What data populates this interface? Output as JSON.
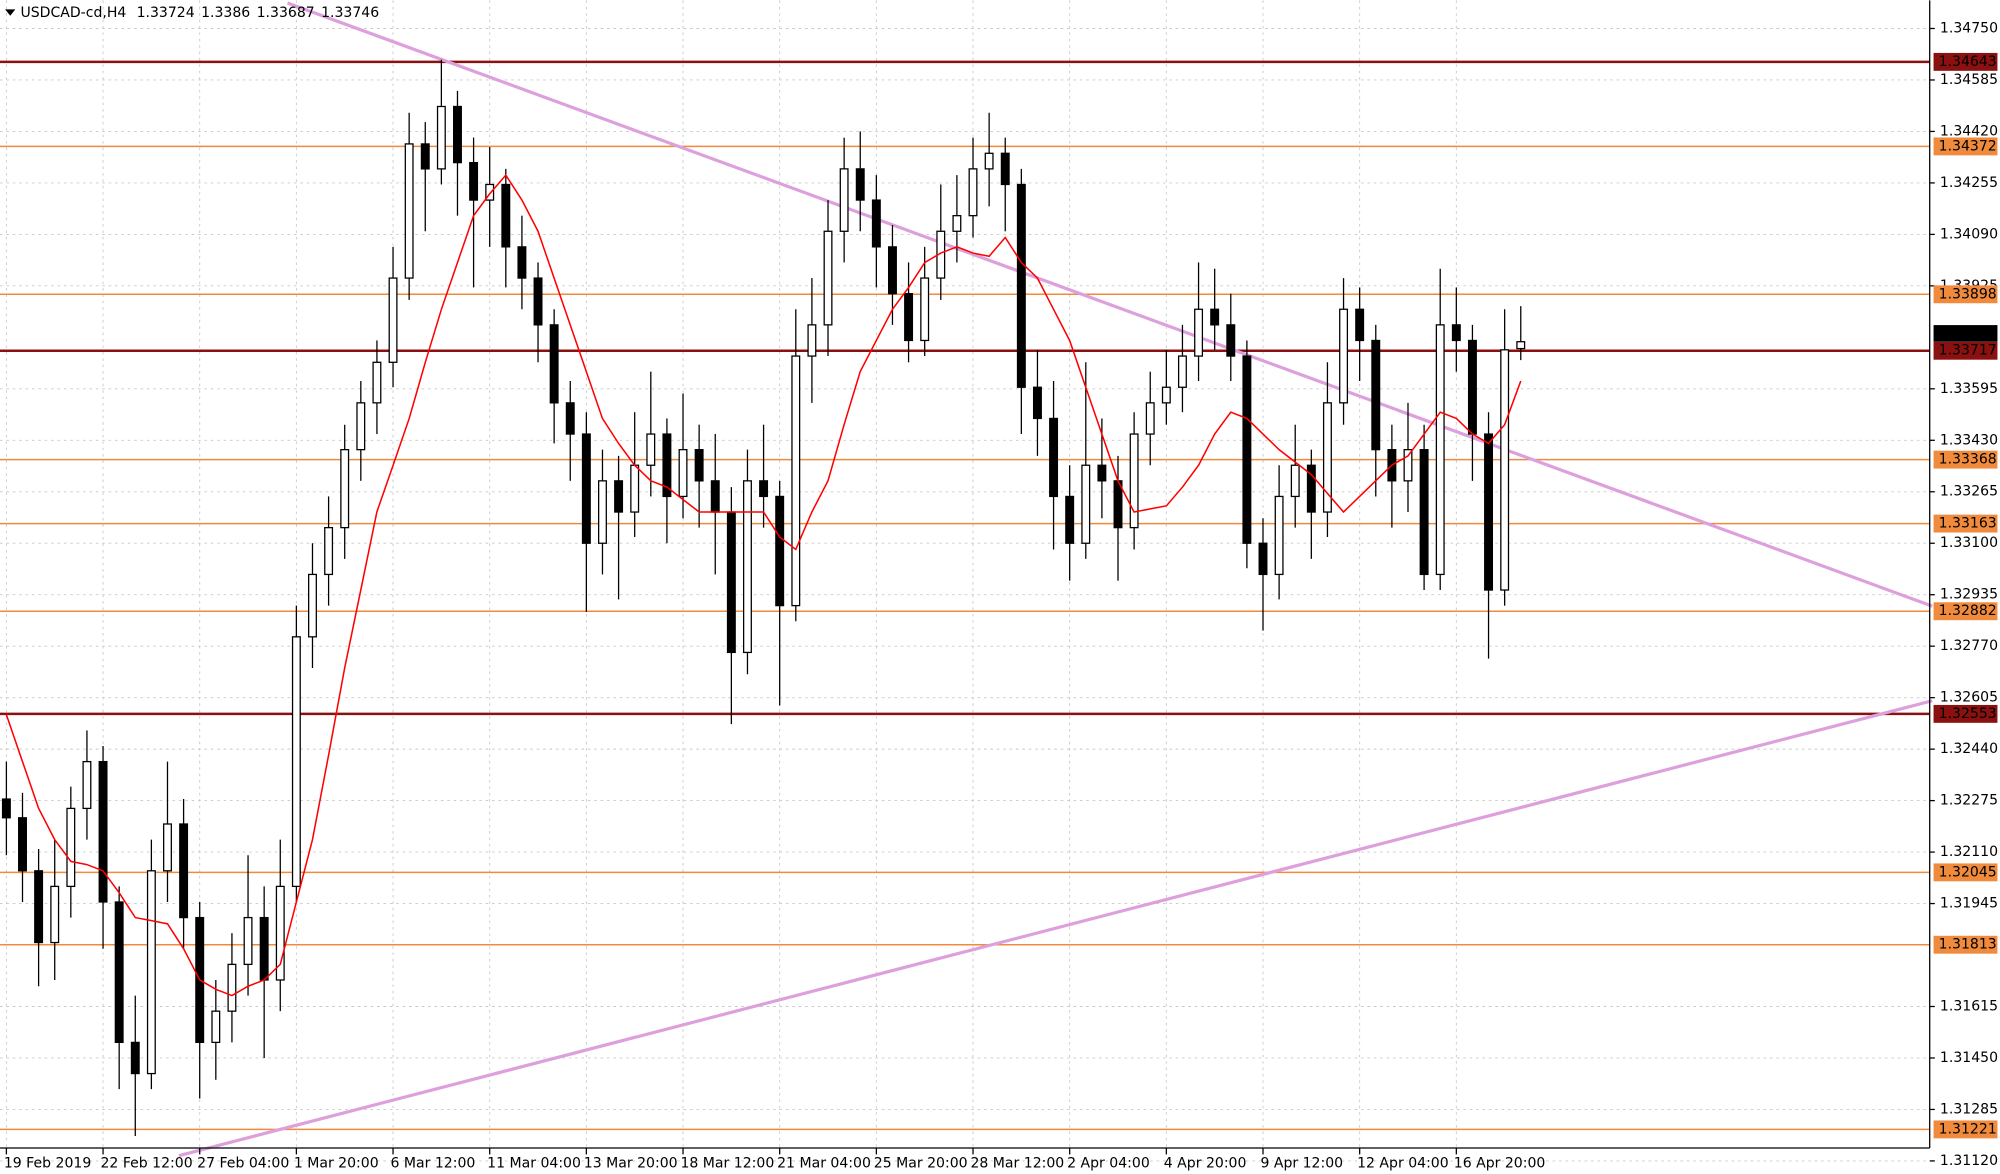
{
  "chart_data": {
    "type": "candlestick",
    "title": "USDCAD-cd,H4",
    "categories": [
      "19 Feb 2019",
      null,
      null,
      null,
      null,
      null,
      "22 Feb 12:00",
      null,
      null,
      null,
      null,
      null,
      "27 Feb 04:00",
      null,
      null,
      null,
      null,
      null,
      "1 Mar 20:00",
      null,
      null,
      null,
      null,
      null,
      "6 Mar 12:00",
      null,
      null,
      null,
      null,
      null,
      "11 Mar 04:00",
      null,
      null,
      null,
      null,
      null,
      "13 Mar 20:00",
      null,
      null,
      null,
      null,
      null,
      "18 Mar 12:00",
      null,
      null,
      null,
      null,
      null,
      "21 Mar 04:00",
      null,
      null,
      null,
      null,
      null,
      "25 Mar 20:00",
      null,
      null,
      null,
      null,
      null,
      "28 Mar 12:00",
      null,
      null,
      null,
      null,
      null,
      "2 Apr 04:00",
      null,
      null,
      null,
      null,
      null,
      "4 Apr 20:00",
      null,
      null,
      null,
      null,
      null,
      "9 Apr 12:00",
      null,
      null,
      null,
      null,
      null,
      "12 Apr 04:00",
      null,
      null,
      null,
      null,
      null,
      "16 Apr 20:00",
      null,
      null,
      null,
      null
    ],
    "open": [
      1.3228,
      1.3222,
      1.3205,
      1.3182,
      1.32,
      1.3225,
      1.324,
      1.3195,
      1.315,
      1.314,
      1.3205,
      1.322,
      1.319,
      1.315,
      1.316,
      1.3175,
      1.319,
      1.317,
      1.32,
      1.328,
      1.33,
      1.3315,
      1.334,
      1.3355,
      1.3368,
      1.3395,
      1.3438,
      1.343,
      1.345,
      1.3432,
      1.342,
      1.3425,
      1.3405,
      1.3395,
      1.338,
      1.3355,
      1.3345,
      1.331,
      1.333,
      1.332,
      1.3335,
      1.3345,
      1.3325,
      1.334,
      1.333,
      1.332,
      1.3275,
      1.333,
      1.3325,
      1.329,
      1.337,
      1.338,
      1.341,
      1.343,
      1.342,
      1.3405,
      1.339,
      1.3375,
      1.3395,
      1.341,
      1.3415,
      1.343,
      1.3435,
      1.3425,
      1.336,
      1.335,
      1.3325,
      1.331,
      1.3335,
      1.333,
      1.3315,
      1.3345,
      1.3355,
      1.336,
      1.337,
      1.3385,
      1.338,
      1.337,
      1.331,
      1.33,
      1.3325,
      1.3335,
      1.332,
      1.3355,
      1.3385,
      1.3375,
      1.334,
      1.333,
      1.334,
      1.33,
      1.338,
      1.3375,
      1.3345,
      1.3295,
      1.33724
    ],
    "high": [
      1.324,
      1.323,
      1.3212,
      1.3215,
      1.3232,
      1.325,
      1.3245,
      1.32,
      1.3165,
      1.3215,
      1.324,
      1.3228,
      1.3195,
      1.317,
      1.3185,
      1.321,
      1.32,
      1.3215,
      1.329,
      1.331,
      1.3325,
      1.3348,
      1.3362,
      1.3375,
      1.3405,
      1.3448,
      1.3445,
      1.3465,
      1.3455,
      1.344,
      1.3437,
      1.343,
      1.3415,
      1.34,
      1.3385,
      1.3362,
      1.3352,
      1.334,
      1.3338,
      1.3352,
      1.3365,
      1.335,
      1.3358,
      1.3348,
      1.3345,
      1.3328,
      1.334,
      1.3348,
      1.333,
      1.3385,
      1.3395,
      1.342,
      1.344,
      1.3442,
      1.3428,
      1.3412,
      1.34,
      1.3405,
      1.3425,
      1.3428,
      1.344,
      1.3448,
      1.344,
      1.343,
      1.3372,
      1.3362,
      1.3335,
      1.3368,
      1.335,
      1.3338,
      1.3352,
      1.3365,
      1.3372,
      1.338,
      1.34,
      1.3398,
      1.339,
      1.3375,
      1.3318,
      1.3335,
      1.3348,
      1.334,
      1.3368,
      1.3395,
      1.3392,
      1.338,
      1.3348,
      1.3355,
      1.3348,
      1.3398,
      1.3392,
      1.338,
      1.3352,
      1.3385,
      1.3386
    ],
    "low": [
      1.321,
      1.3195,
      1.3168,
      1.317,
      1.319,
      1.3215,
      1.318,
      1.3135,
      1.312,
      1.3135,
      1.3195,
      1.318,
      1.3132,
      1.3138,
      1.315,
      1.3165,
      1.3145,
      1.316,
      1.3195,
      1.327,
      1.329,
      1.3305,
      1.333,
      1.3345,
      1.336,
      1.3388,
      1.341,
      1.3425,
      1.3415,
      1.3392,
      1.3405,
      1.3392,
      1.3385,
      1.3368,
      1.3342,
      1.333,
      1.3288,
      1.33,
      1.3292,
      1.3312,
      1.3325,
      1.331,
      1.3318,
      1.3315,
      1.33,
      1.3252,
      1.3268,
      1.3315,
      1.3258,
      1.3285,
      1.3355,
      1.337,
      1.34,
      1.341,
      1.3392,
      1.338,
      1.3368,
      1.337,
      1.3388,
      1.34,
      1.3408,
      1.3418,
      1.341,
      1.3345,
      1.3338,
      1.3308,
      1.3298,
      1.3305,
      1.3318,
      1.3298,
      1.3308,
      1.3335,
      1.3348,
      1.3352,
      1.3362,
      1.3372,
      1.3362,
      1.3302,
      1.3282,
      1.3292,
      1.3315,
      1.3305,
      1.3312,
      1.3348,
      1.3362,
      1.3325,
      1.3315,
      1.332,
      1.3295,
      1.3295,
      1.3365,
      1.333,
      1.3273,
      1.329,
      1.33687
    ],
    "close": [
      1.3222,
      1.3205,
      1.3182,
      1.32,
      1.3225,
      1.324,
      1.3195,
      1.315,
      1.314,
      1.3205,
      1.322,
      1.319,
      1.315,
      1.316,
      1.3175,
      1.319,
      1.317,
      1.32,
      1.328,
      1.33,
      1.3315,
      1.334,
      1.3355,
      1.3368,
      1.3395,
      1.3438,
      1.343,
      1.345,
      1.3432,
      1.342,
      1.3425,
      1.3405,
      1.3395,
      1.338,
      1.3355,
      1.3345,
      1.331,
      1.333,
      1.332,
      1.3335,
      1.3345,
      1.3325,
      1.334,
      1.333,
      1.332,
      1.3275,
      1.333,
      1.3325,
      1.329,
      1.337,
      1.338,
      1.341,
      1.343,
      1.342,
      1.3405,
      1.339,
      1.3375,
      1.3395,
      1.341,
      1.3415,
      1.343,
      1.3435,
      1.3425,
      1.336,
      1.335,
      1.3325,
      1.331,
      1.3335,
      1.333,
      1.3315,
      1.3345,
      1.3355,
      1.336,
      1.337,
      1.3385,
      1.338,
      1.337,
      1.331,
      1.33,
      1.3325,
      1.3335,
      1.332,
      1.3355,
      1.3385,
      1.3375,
      1.334,
      1.333,
      1.334,
      1.33,
      1.338,
      1.3375,
      1.3345,
      1.3295,
      1.3372,
      1.33746
    ],
    "moving_average": {
      "color": "#ff0000",
      "values": [
        1.3255,
        1.324,
        1.3225,
        1.3215,
        1.3208,
        1.3207,
        1.3205,
        1.3198,
        1.319,
        1.3189,
        1.3188,
        1.318,
        1.317,
        1.3167,
        1.3165,
        1.3168,
        1.317,
        1.3175,
        1.3195,
        1.3215,
        1.3242,
        1.327,
        1.3295,
        1.332,
        1.3335,
        1.335,
        1.3368,
        1.3385,
        1.34,
        1.3415,
        1.3422,
        1.3428,
        1.342,
        1.341,
        1.3395,
        1.338,
        1.3365,
        1.335,
        1.3342,
        1.3335,
        1.333,
        1.3328,
        1.3324,
        1.332,
        1.332,
        1.332,
        1.332,
        1.332,
        1.3312,
        1.3308,
        1.332,
        1.333,
        1.3348,
        1.3365,
        1.3375,
        1.3385,
        1.3392,
        1.34,
        1.3403,
        1.3405,
        1.3403,
        1.3402,
        1.3408,
        1.34,
        1.3395,
        1.3385,
        1.3375,
        1.336,
        1.3345,
        1.333,
        1.332,
        1.3321,
        1.3322,
        1.3328,
        1.3335,
        1.3345,
        1.3352,
        1.335,
        1.3345,
        1.334,
        1.3336,
        1.3332,
        1.3326,
        1.332,
        1.3325,
        1.333,
        1.3335,
        1.3338,
        1.3345,
        1.3352,
        1.335,
        1.3345,
        1.3342,
        1.3348,
        1.3362
      ]
    },
    "ylim": [
      1.31104,
      1.3484
    ],
    "yticks": [
      {
        "value": 1.3475,
        "label": "1.34750"
      },
      1.34585,
      {
        "value": 1.3442,
        "label": "1.34420"
      },
      1.34255,
      {
        "value": 1.3409,
        "label": "1.34090"
      },
      1.33925,
      1.33595,
      {
        "value": 1.3343,
        "label": "1.33430"
      },
      1.33265,
      {
        "value": 1.331,
        "label": "1.33100"
      },
      1.32935,
      {
        "value": 1.3277,
        "label": "1.32770"
      },
      1.32605,
      {
        "value": 1.3244,
        "label": "1.32440"
      },
      1.32275,
      {
        "value": 1.3211,
        "label": "1.32110"
      },
      1.31945,
      1.31615,
      {
        "value": 1.3145,
        "label": "1.31450"
      },
      1.31285,
      {
        "value": 1.3112,
        "label": "1.31120"
      }
    ],
    "grid": true,
    "levels": [
      {
        "value": 1.34643,
        "color": "#8b1010"
      },
      {
        "value": 1.34372,
        "color": "#f08a3c"
      },
      {
        "value": 1.33898,
        "color": "#f08a3c"
      },
      {
        "value": 1.33717,
        "color": "#8b1010"
      },
      {
        "value": 1.33368,
        "color": "#f08a3c"
      },
      {
        "value": 1.33163,
        "color": "#f08a3c"
      },
      {
        "value": 1.32882,
        "color": "#f08a3c"
      },
      {
        "value": 1.32553,
        "color": "#8b1010"
      },
      {
        "value": 1.32045,
        "color": "#f08a3c"
      },
      {
        "value": 1.31813,
        "color": "#f08a3c"
      },
      {
        "value": 1.31221,
        "color": "#f08a3c"
      }
    ]
  }
}
